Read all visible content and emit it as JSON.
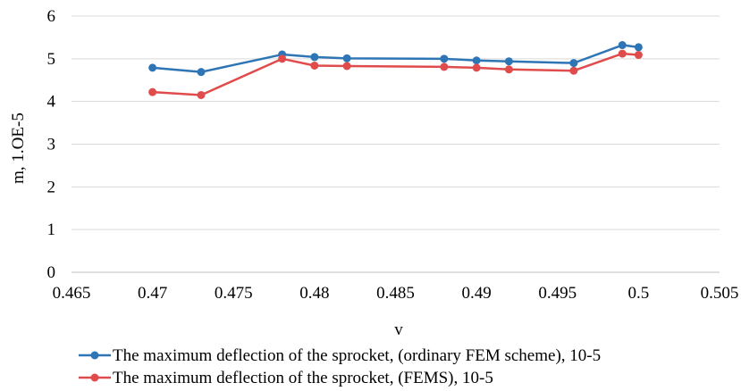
{
  "chart_data": {
    "type": "line",
    "title": "",
    "xlabel": "v",
    "ylabel": "m, 1.OE-5",
    "xlim": [
      0.465,
      0.505
    ],
    "ylim": [
      0,
      6
    ],
    "x_ticks": [
      "0.465",
      "0.47",
      "0.475",
      "0.48",
      "0.485",
      "0.49",
      "0.495",
      "0.5",
      "0.505"
    ],
    "y_ticks": [
      "0",
      "1",
      "2",
      "3",
      "4",
      "5",
      "6"
    ],
    "grid": "horizontal",
    "legend_position": "bottom",
    "series": [
      {
        "name": "The maximum deflection of the sprocket, (ordinary FEM scheme), 10-5",
        "color": "#2e75b6",
        "x": [
          0.47,
          0.473,
          0.478,
          0.48,
          0.482,
          0.488,
          0.49,
          0.492,
          0.496,
          0.499,
          0.5
        ],
        "y": [
          4.79,
          4.69,
          5.1,
          5.04,
          5.01,
          5.0,
          4.96,
          4.94,
          4.9,
          5.32,
          5.27
        ]
      },
      {
        "name": "The maximum deflection of the sprocket, (FEMS), 10-5",
        "color": "#e04c4c",
        "x": [
          0.47,
          0.473,
          0.478,
          0.48,
          0.482,
          0.488,
          0.49,
          0.492,
          0.496,
          0.499,
          0.5
        ],
        "y": [
          4.22,
          4.15,
          5.0,
          4.84,
          4.83,
          4.81,
          4.79,
          4.75,
          4.72,
          5.12,
          5.09
        ]
      }
    ]
  }
}
